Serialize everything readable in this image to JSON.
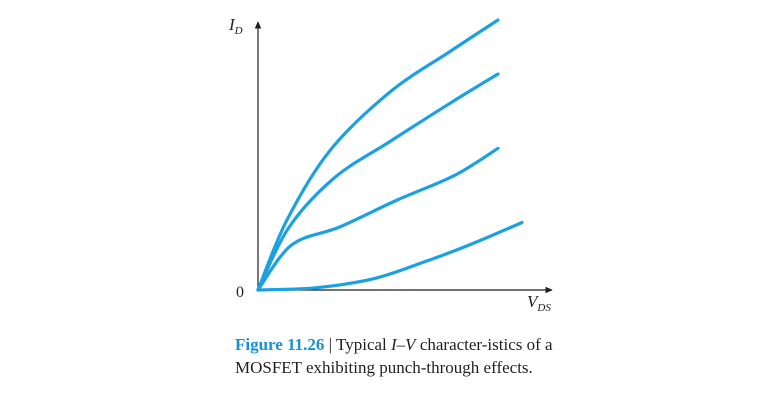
{
  "chart_data": {
    "type": "line",
    "xlabel": {
      "main": "V",
      "sub": "DS"
    },
    "ylabel": {
      "main": "I",
      "sub": "D"
    },
    "origin_label": "0",
    "color": "#1ba1e2",
    "series": [
      {
        "points": [
          [
            0,
            0
          ],
          [
            0.12,
            0.31
          ],
          [
            0.3,
            0.62
          ],
          [
            0.55,
            0.88
          ],
          [
            0.8,
            1.06
          ],
          [
            1.0,
            1.2
          ]
        ]
      },
      {
        "points": [
          [
            0,
            0
          ],
          [
            0.13,
            0.28
          ],
          [
            0.32,
            0.5
          ],
          [
            0.55,
            0.66
          ],
          [
            0.8,
            0.83
          ],
          [
            1.0,
            0.96
          ]
        ]
      },
      {
        "points": [
          [
            0,
            0
          ],
          [
            0.14,
            0.2
          ],
          [
            0.34,
            0.28
          ],
          [
            0.58,
            0.4
          ],
          [
            0.82,
            0.51
          ],
          [
            1.0,
            0.63
          ]
        ]
      },
      {
        "points": [
          [
            0,
            0
          ],
          [
            0.24,
            0.01
          ],
          [
            0.48,
            0.05
          ],
          [
            0.68,
            0.12
          ],
          [
            0.88,
            0.2
          ],
          [
            1.1,
            0.3
          ]
        ]
      }
    ],
    "xlim": [
      0,
      1.25
    ],
    "ylim": [
      0,
      1.2
    ]
  },
  "caption": {
    "figure_number": "Figure 11.26",
    "separator": " | ",
    "text_1": "Typical ",
    "iv": "I–V",
    "text_2": " character-istics of a MOSFET exhibiting punch-through effects."
  }
}
